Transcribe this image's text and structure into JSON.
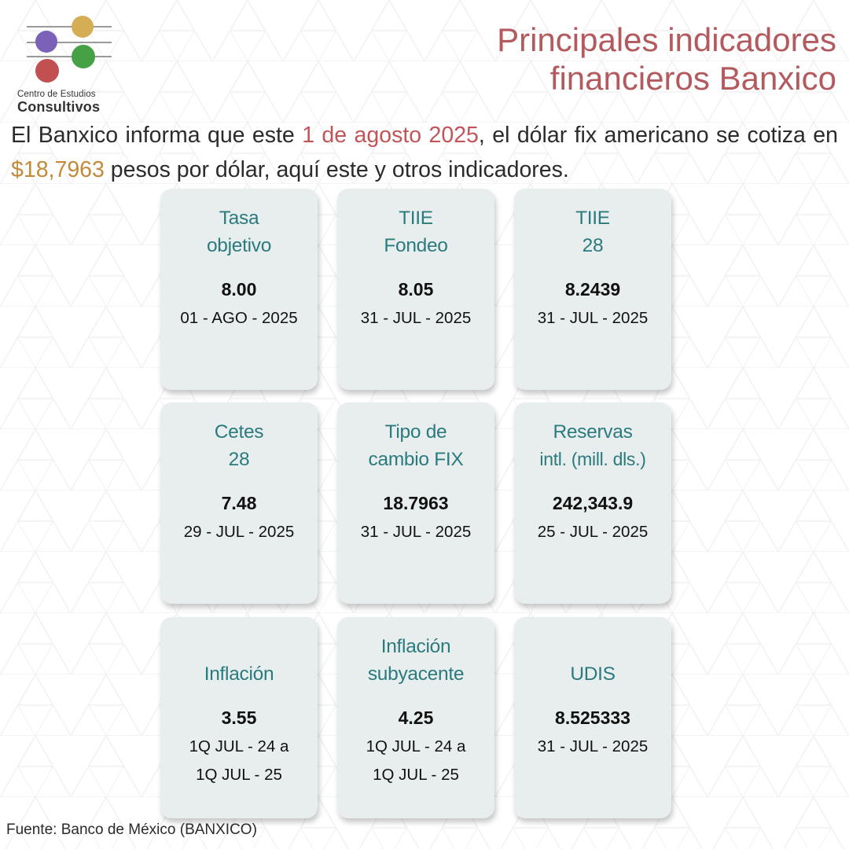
{
  "logo": {
    "line1": "Centro de Estudios",
    "line2": "Consultivos",
    "colors": {
      "purple": "#7b62b8",
      "gold": "#d4ad55",
      "red": "#c25050",
      "green": "#45a046"
    }
  },
  "header": {
    "title_line1": "Principales indicadores",
    "title_line2": "financieros Banxico"
  },
  "intro": {
    "part1": "El Banxico informa que este ",
    "date": "1 de agosto 2025",
    "part2": ", el dólar fix americano se cotiza en ",
    "amount": "$18,7963",
    "part3": " pesos por dólar, aquí este y otros indicadores."
  },
  "cards": [
    {
      "label_line1": "Tasa",
      "label_line2": "objetivo",
      "value": "8.00",
      "date_line1": "01 - AGO - 2025",
      "date_line2": ""
    },
    {
      "label_line1": "TIIE",
      "label_line2": "Fondeo",
      "value": "8.05",
      "date_line1": "31 - JUL - 2025",
      "date_line2": ""
    },
    {
      "label_line1": "TIIE",
      "label_line2": "28",
      "value": "8.2439",
      "date_line1": "31 - JUL - 2025",
      "date_line2": ""
    },
    {
      "label_line1": "Cetes",
      "label_line2": "28",
      "value": "7.48",
      "date_line1": "29 - JUL - 2025",
      "date_line2": ""
    },
    {
      "label_line1": "Tipo de",
      "label_line2": "cambio FIX",
      "value": "18.7963",
      "date_line1": "31 - JUL - 2025",
      "date_line2": ""
    },
    {
      "label_line1": "Reservas",
      "label_line2": "intl. (mill. dls.)",
      "value": "242,343.9",
      "date_line1": "25 - JUL - 2025",
      "date_line2": ""
    },
    {
      "label_line1": "",
      "label_line2": "Inflación",
      "value": "3.55",
      "date_line1": "1Q JUL - 24 a",
      "date_line2": "1Q JUL - 25"
    },
    {
      "label_line1": "Inflación",
      "label_line2": "subyacente",
      "value": "4.25",
      "date_line1": "1Q JUL - 24 a",
      "date_line2": "1Q JUL - 25"
    },
    {
      "label_line1": "",
      "label_line2": "UDIS",
      "value": "8.525333",
      "date_line1": "31 - JUL - 2025",
      "date_line2": ""
    }
  ],
  "footer": {
    "source": "Fuente: Banco de México (BANXICO)"
  }
}
